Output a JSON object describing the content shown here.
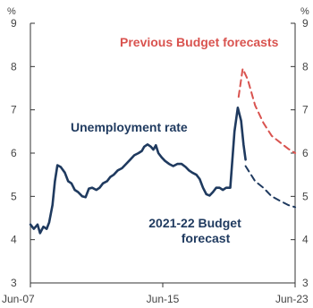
{
  "chart_data": {
    "type": "line",
    "title": "",
    "ylim": [
      3,
      9
    ],
    "y_ticks": [
      "3",
      "4",
      "5",
      "6",
      "7",
      "8",
      "9"
    ],
    "y_unit_left": "%",
    "y_unit_right": "%",
    "xlim": [
      2007.417,
      2023.417
    ],
    "x_ticks": [
      {
        "label": "Jun-07",
        "x": 2007.417
      },
      {
        "label": "Jun-15",
        "x": 2015.417
      },
      {
        "label": "Jun-23",
        "x": 2023.417
      }
    ],
    "grid": false,
    "series": [
      {
        "name": "Unemployment rate",
        "style": "solid",
        "color": "#1f3a5f",
        "points": [
          [
            2007.42,
            4.35
          ],
          [
            2007.62,
            4.25
          ],
          [
            2007.85,
            4.35
          ],
          [
            2008.0,
            4.15
          ],
          [
            2008.2,
            4.3
          ],
          [
            2008.4,
            4.25
          ],
          [
            2008.55,
            4.4
          ],
          [
            2008.75,
            4.8
          ],
          [
            2008.9,
            5.35
          ],
          [
            2009.05,
            5.72
          ],
          [
            2009.25,
            5.68
          ],
          [
            2009.5,
            5.55
          ],
          [
            2009.7,
            5.35
          ],
          [
            2009.9,
            5.3
          ],
          [
            2010.1,
            5.15
          ],
          [
            2010.3,
            5.1
          ],
          [
            2010.55,
            5.0
          ],
          [
            2010.75,
            4.98
          ],
          [
            2010.95,
            5.18
          ],
          [
            2011.15,
            5.2
          ],
          [
            2011.4,
            5.15
          ],
          [
            2011.6,
            5.2
          ],
          [
            2011.8,
            5.3
          ],
          [
            2012.05,
            5.35
          ],
          [
            2012.25,
            5.45
          ],
          [
            2012.45,
            5.5
          ],
          [
            2012.7,
            5.6
          ],
          [
            2012.95,
            5.65
          ],
          [
            2013.2,
            5.75
          ],
          [
            2013.45,
            5.85
          ],
          [
            2013.7,
            5.95
          ],
          [
            2013.95,
            6.0
          ],
          [
            2014.15,
            6.05
          ],
          [
            2014.3,
            6.15
          ],
          [
            2014.5,
            6.2
          ],
          [
            2014.7,
            6.15
          ],
          [
            2014.85,
            6.08
          ],
          [
            2015.0,
            6.18
          ],
          [
            2015.15,
            6.0
          ],
          [
            2015.35,
            5.9
          ],
          [
            2015.55,
            5.82
          ],
          [
            2015.8,
            5.75
          ],
          [
            2016.05,
            5.7
          ],
          [
            2016.3,
            5.75
          ],
          [
            2016.55,
            5.75
          ],
          [
            2016.8,
            5.68
          ],
          [
            2017.0,
            5.6
          ],
          [
            2017.2,
            5.55
          ],
          [
            2017.45,
            5.5
          ],
          [
            2017.65,
            5.4
          ],
          [
            2017.85,
            5.2
          ],
          [
            2018.05,
            5.05
          ],
          [
            2018.25,
            5.02
          ],
          [
            2018.45,
            5.1
          ],
          [
            2018.65,
            5.2
          ],
          [
            2018.85,
            5.2
          ],
          [
            2019.05,
            5.15
          ],
          [
            2019.25,
            5.2
          ],
          [
            2019.5,
            5.2
          ],
          [
            2019.75,
            6.5
          ],
          [
            2019.95,
            7.05
          ],
          [
            2020.15,
            6.75
          ],
          [
            2020.3,
            6.2
          ],
          [
            2020.42,
            5.85
          ]
        ]
      },
      {
        "name": "2021-22 Budget forecast",
        "style": "dashed",
        "color": "#1f3a5f",
        "points": [
          [
            2020.42,
            5.7
          ],
          [
            2021.0,
            5.35
          ],
          [
            2021.5,
            5.2
          ],
          [
            2022.0,
            5.0
          ],
          [
            2022.5,
            4.9
          ],
          [
            2023.0,
            4.8
          ],
          [
            2023.42,
            4.75
          ]
        ]
      },
      {
        "name": "Previous Budget forecasts",
        "style": "dashed",
        "color": "#d9534f",
        "points": [
          [
            2020.0,
            7.3
          ],
          [
            2020.25,
            7.95
          ],
          [
            2020.55,
            7.7
          ],
          [
            2021.0,
            7.1
          ],
          [
            2021.5,
            6.7
          ],
          [
            2022.0,
            6.4
          ],
          [
            2022.5,
            6.25
          ],
          [
            2023.0,
            6.1
          ],
          [
            2023.42,
            6.0
          ]
        ]
      }
    ],
    "annotations": [
      {
        "text": "Previous Budget forecasts",
        "color": "#d9534f"
      },
      {
        "text": "Unemployment rate",
        "color": "#1f3a5f"
      },
      {
        "text": "2021-22 Budget",
        "color": "#1f3a5f"
      },
      {
        "text": "forecast",
        "color": "#1f3a5f"
      }
    ]
  }
}
